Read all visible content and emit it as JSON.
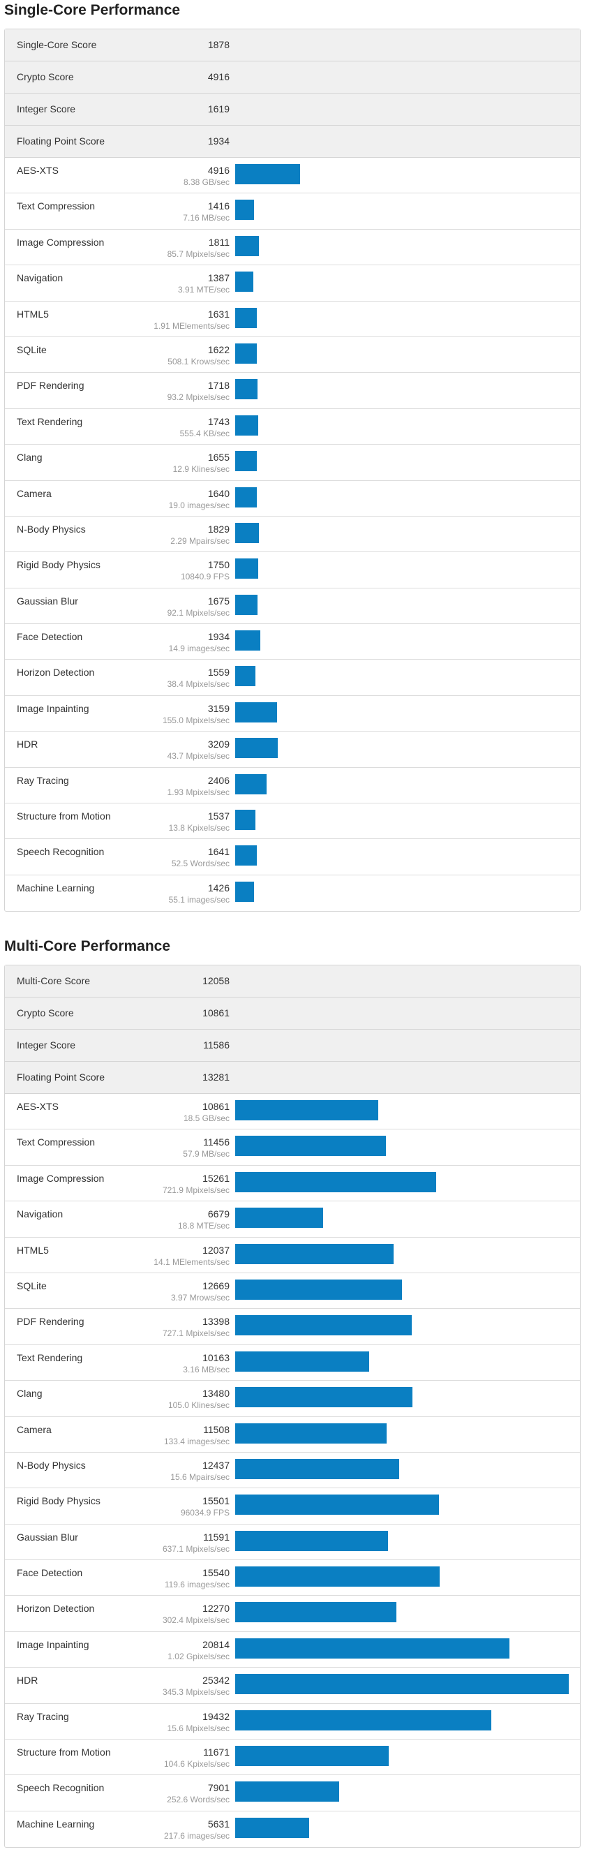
{
  "single": {
    "title": "Single-Core Performance",
    "summary": [
      {
        "label": "Single-Core Score",
        "value": "1878"
      },
      {
        "label": "Crypto Score",
        "value": "4916"
      },
      {
        "label": "Integer Score",
        "value": "1619"
      },
      {
        "label": "Floating Point Score",
        "value": "1934"
      }
    ],
    "benchmarks": [
      {
        "name": "AES-XTS",
        "score": 4916,
        "rate": "8.38 GB/sec"
      },
      {
        "name": "Text Compression",
        "score": 1416,
        "rate": "7.16 MB/sec"
      },
      {
        "name": "Image Compression",
        "score": 1811,
        "rate": "85.7 Mpixels/sec"
      },
      {
        "name": "Navigation",
        "score": 1387,
        "rate": "3.91 MTE/sec"
      },
      {
        "name": "HTML5",
        "score": 1631,
        "rate": "1.91 MElements/sec"
      },
      {
        "name": "SQLite",
        "score": 1622,
        "rate": "508.1 Krows/sec"
      },
      {
        "name": "PDF Rendering",
        "score": 1718,
        "rate": "93.2 Mpixels/sec"
      },
      {
        "name": "Text Rendering",
        "score": 1743,
        "rate": "555.4 KB/sec"
      },
      {
        "name": "Clang",
        "score": 1655,
        "rate": "12.9 Klines/sec"
      },
      {
        "name": "Camera",
        "score": 1640,
        "rate": "19.0 images/sec"
      },
      {
        "name": "N-Body Physics",
        "score": 1829,
        "rate": "2.29 Mpairs/sec"
      },
      {
        "name": "Rigid Body Physics",
        "score": 1750,
        "rate": "10840.9 FPS"
      },
      {
        "name": "Gaussian Blur",
        "score": 1675,
        "rate": "92.1 Mpixels/sec"
      },
      {
        "name": "Face Detection",
        "score": 1934,
        "rate": "14.9 images/sec"
      },
      {
        "name": "Horizon Detection",
        "score": 1559,
        "rate": "38.4 Mpixels/sec"
      },
      {
        "name": "Image Inpainting",
        "score": 3159,
        "rate": "155.0 Mpixels/sec"
      },
      {
        "name": "HDR",
        "score": 3209,
        "rate": "43.7 Mpixels/sec"
      },
      {
        "name": "Ray Tracing",
        "score": 2406,
        "rate": "1.93 Mpixels/sec"
      },
      {
        "name": "Structure from Motion",
        "score": 1537,
        "rate": "13.8 Kpixels/sec"
      },
      {
        "name": "Speech Recognition",
        "score": 1641,
        "rate": "52.5 Words/sec"
      },
      {
        "name": "Machine Learning",
        "score": 1426,
        "rate": "55.1 images/sec"
      }
    ]
  },
  "multi": {
    "title": "Multi-Core Performance",
    "summary": [
      {
        "label": "Multi-Core Score",
        "value": "12058"
      },
      {
        "label": "Crypto Score",
        "value": "10861"
      },
      {
        "label": "Integer Score",
        "value": "11586"
      },
      {
        "label": "Floating Point Score",
        "value": "13281"
      }
    ],
    "benchmarks": [
      {
        "name": "AES-XTS",
        "score": 10861,
        "rate": "18.5 GB/sec"
      },
      {
        "name": "Text Compression",
        "score": 11456,
        "rate": "57.9 MB/sec"
      },
      {
        "name": "Image Compression",
        "score": 15261,
        "rate": "721.9 Mpixels/sec"
      },
      {
        "name": "Navigation",
        "score": 6679,
        "rate": "18.8 MTE/sec"
      },
      {
        "name": "HTML5",
        "score": 12037,
        "rate": "14.1 MElements/sec"
      },
      {
        "name": "SQLite",
        "score": 12669,
        "rate": "3.97 Mrows/sec"
      },
      {
        "name": "PDF Rendering",
        "score": 13398,
        "rate": "727.1 Mpixels/sec"
      },
      {
        "name": "Text Rendering",
        "score": 10163,
        "rate": "3.16 MB/sec"
      },
      {
        "name": "Clang",
        "score": 13480,
        "rate": "105.0 Klines/sec"
      },
      {
        "name": "Camera",
        "score": 11508,
        "rate": "133.4 images/sec"
      },
      {
        "name": "N-Body Physics",
        "score": 12437,
        "rate": "15.6 Mpairs/sec"
      },
      {
        "name": "Rigid Body Physics",
        "score": 15501,
        "rate": "96034.9 FPS"
      },
      {
        "name": "Gaussian Blur",
        "score": 11591,
        "rate": "637.1 Mpixels/sec"
      },
      {
        "name": "Face Detection",
        "score": 15540,
        "rate": "119.6 images/sec"
      },
      {
        "name": "Horizon Detection",
        "score": 12270,
        "rate": "302.4 Mpixels/sec"
      },
      {
        "name": "Image Inpainting",
        "score": 20814,
        "rate": "1.02 Gpixels/sec"
      },
      {
        "name": "HDR",
        "score": 25342,
        "rate": "345.3 Mpixels/sec"
      },
      {
        "name": "Ray Tracing",
        "score": 19432,
        "rate": "15.6 Mpixels/sec"
      },
      {
        "name": "Structure from Motion",
        "score": 11671,
        "rate": "104.6 Kpixels/sec"
      },
      {
        "name": "Speech Recognition",
        "score": 7901,
        "rate": "252.6 Words/sec"
      },
      {
        "name": "Machine Learning",
        "score": 5631,
        "rate": "217.6 images/sec"
      }
    ]
  },
  "colors": {
    "bar": "#0a7fc2",
    "summary_bg": "#f0f0f0",
    "border": "#d4d4d4"
  }
}
